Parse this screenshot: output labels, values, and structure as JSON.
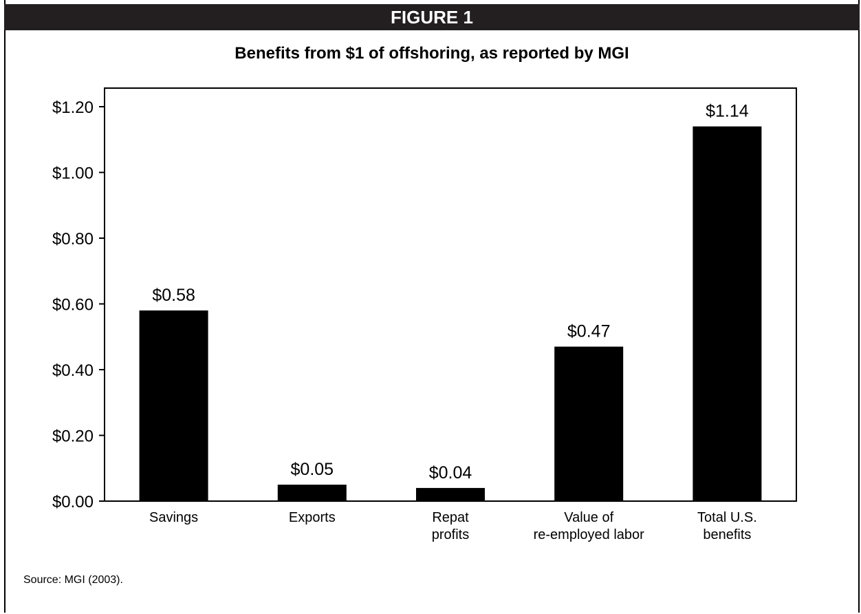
{
  "figure_label": "FIGURE 1",
  "source": "Source:  MGI (2003).",
  "colors": {
    "bar": "#000000",
    "header_bg": "#231f20"
  },
  "chart_data": {
    "type": "bar",
    "title": "Benefits from $1 of offshoring, as reported by MGI",
    "xlabel": "",
    "ylabel": "",
    "ylim": [
      0,
      1.2
    ],
    "grid": false,
    "categories": [
      [
        "Savings"
      ],
      [
        "Exports"
      ],
      [
        "Repat",
        "profits"
      ],
      [
        "Value of",
        "re-employed labor"
      ],
      [
        "Total U.S.",
        "benefits"
      ]
    ],
    "values": [
      0.58,
      0.05,
      0.04,
      0.47,
      1.14
    ],
    "value_labels": [
      "$0.58",
      "$0.05",
      "$0.04",
      "$0.47",
      "$1.14"
    ],
    "yticks": [
      0,
      0.2,
      0.4,
      0.6,
      0.8,
      1.0,
      1.2
    ],
    "ytick_labels": [
      "$0.00",
      "$0.20",
      "$0.40",
      "$0.60",
      "$0.80",
      "$1.00",
      "$1.20"
    ]
  }
}
